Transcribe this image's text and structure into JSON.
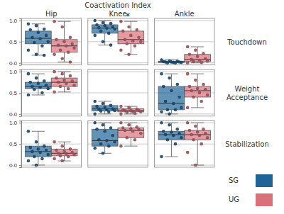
{
  "chart_data": {
    "type": "box",
    "title": "Coactivation Index",
    "columns": [
      "Hip",
      "Knee",
      "Ankle"
    ],
    "rows": [
      "Touchdown",
      "Weight Acceptance",
      "Stabilization"
    ],
    "ylim": [
      -0.05,
      1.05
    ],
    "yticks": [
      {
        "value": 0,
        "label": "0.0"
      },
      {
        "value": 0.5,
        "label": "0.5"
      },
      {
        "value": 1,
        "label": "1.0"
      }
    ],
    "grid": true,
    "legend": "lower right",
    "annotations": [
      {
        "text": "*",
        "row": 0,
        "column": 1
      }
    ],
    "series": [
      {
        "name": "SG",
        "color": "#1f6496",
        "boxes": [
          [
            {
              "whisker_low": 0.18,
              "q1": 0.45,
              "median": 0.58,
              "q3": 0.75,
              "whisker_high": 0.92,
              "points": [
                0.92,
                0.88,
                0.8,
                0.78,
                0.72,
                0.65,
                0.6,
                0.57,
                0.5,
                0.48,
                0.4,
                0.3,
                0.2,
                0.18
              ]
            },
            {
              "whisker_low": 0.42,
              "q1": 0.7,
              "median": 0.82,
              "q3": 0.9,
              "whisker_high": 1.0,
              "points": [
                1.0,
                0.95,
                0.93,
                0.9,
                0.88,
                0.85,
                0.83,
                0.82,
                0.8,
                0.75,
                0.7,
                0.65,
                0.5,
                0.42
              ]
            },
            {
              "whisker_low": 0.0,
              "q1": 0.01,
              "median": 0.02,
              "q3": 0.04,
              "whisker_high": 0.07,
              "points": [
                0.07,
                0.05,
                0.04,
                0.03,
                0.02,
                0.02,
                0.02,
                0.01,
                0.01,
                0.0,
                0.0
              ]
            }
          ],
          [
            {
              "whisker_low": 0.45,
              "q1": 0.6,
              "median": 0.65,
              "q3": 0.75,
              "whisker_high": 0.95,
              "points": [
                0.95,
                0.85,
                0.78,
                0.75,
                0.72,
                0.68,
                0.65,
                0.63,
                0.6,
                0.58,
                0.5,
                0.45
              ]
            },
            {
              "whisker_low": 0.0,
              "q1": 0.07,
              "median": 0.12,
              "q3": 0.2,
              "whisker_high": 0.3,
              "points": [
                0.3,
                0.25,
                0.2,
                0.18,
                0.15,
                0.12,
                0.12,
                0.1,
                0.08,
                0.07,
                0.05,
                0.0
              ]
            },
            {
              "whisker_low": 0.0,
              "q1": 0.1,
              "median": 0.25,
              "q3": 0.65,
              "whisker_high": 0.95,
              "points": [
                0.95,
                0.85,
                0.7,
                0.65,
                0.55,
                0.4,
                0.3,
                0.25,
                0.15,
                0.1,
                0.1,
                0.05,
                0.0
              ]
            }
          ],
          [
            {
              "whisker_low": 0.0,
              "q1": 0.2,
              "median": 0.32,
              "q3": 0.45,
              "whisker_high": 0.8,
              "points": [
                0.8,
                0.55,
                0.45,
                0.42,
                0.38,
                0.35,
                0.32,
                0.3,
                0.25,
                0.2,
                0.15,
                0.1,
                0.0
              ]
            },
            {
              "whisker_low": 0.28,
              "q1": 0.45,
              "median": 0.58,
              "q3": 0.85,
              "whisker_high": 1.0,
              "points": [
                1.0,
                0.95,
                0.88,
                0.85,
                0.8,
                0.7,
                0.6,
                0.58,
                0.55,
                0.5,
                0.45,
                0.4,
                0.28
              ]
            },
            {
              "whisker_low": 0.2,
              "q1": 0.6,
              "median": 0.72,
              "q3": 0.8,
              "whisker_high": 1.0,
              "points": [
                1.0,
                0.95,
                0.85,
                0.8,
                0.78,
                0.75,
                0.72,
                0.7,
                0.65,
                0.6,
                0.5,
                0.2
              ]
            }
          ]
        ]
      },
      {
        "name": "UG",
        "color": "#d9707a",
        "boxes": [
          [
            {
              "whisker_low": 0.02,
              "q1": 0.25,
              "median": 0.4,
              "q3": 0.55,
              "whisker_high": 0.98,
              "points": [
                0.98,
                0.85,
                0.6,
                0.55,
                0.5,
                0.45,
                0.42,
                0.4,
                0.35,
                0.3,
                0.25,
                0.2,
                0.1,
                0.02
              ]
            },
            {
              "whisker_low": 0.2,
              "q1": 0.45,
              "median": 0.55,
              "q3": 0.75,
              "whisker_high": 0.98,
              "points": [
                0.98,
                0.85,
                0.78,
                0.75,
                0.65,
                0.6,
                0.55,
                0.52,
                0.5,
                0.45,
                0.4,
                0.3,
                0.2
              ]
            },
            {
              "whisker_low": 0.0,
              "q1": 0.03,
              "median": 0.08,
              "q3": 0.2,
              "whisker_high": 0.38,
              "points": [
                0.38,
                0.3,
                0.22,
                0.2,
                0.15,
                0.1,
                0.08,
                0.06,
                0.04,
                0.03,
                0.01,
                0.0
              ]
            }
          ],
          [
            {
              "whisker_low": 0.52,
              "q1": 0.65,
              "median": 0.75,
              "q3": 0.85,
              "whisker_high": 1.0,
              "points": [
                1.0,
                0.95,
                0.9,
                0.85,
                0.8,
                0.78,
                0.75,
                0.72,
                0.68,
                0.65,
                0.6,
                0.52
              ]
            },
            {
              "whisker_low": 0.0,
              "q1": 0.05,
              "median": 0.08,
              "q3": 0.12,
              "whisker_high": 0.18,
              "points": [
                0.18,
                0.15,
                0.12,
                0.1,
                0.09,
                0.08,
                0.08,
                0.06,
                0.05,
                0.04,
                0.02,
                0.0
              ]
            },
            {
              "whisker_low": 0.15,
              "q1": 0.4,
              "median": 0.55,
              "q3": 0.65,
              "whisker_high": 0.95,
              "points": [
                0.95,
                0.8,
                0.7,
                0.65,
                0.6,
                0.58,
                0.55,
                0.5,
                0.45,
                0.4,
                0.3,
                0.15
              ]
            }
          ],
          [
            {
              "whisker_low": 0.1,
              "q1": 0.22,
              "median": 0.28,
              "q3": 0.38,
              "whisker_high": 0.55,
              "points": [
                0.55,
                0.45,
                0.38,
                0.35,
                0.32,
                0.3,
                0.28,
                0.27,
                0.25,
                0.22,
                0.2,
                0.15,
                0.1
              ]
            },
            {
              "whisker_low": 0.45,
              "q1": 0.65,
              "median": 0.82,
              "q3": 0.88,
              "whisker_high": 1.0,
              "points": [
                1.0,
                0.95,
                0.9,
                0.88,
                0.86,
                0.84,
                0.82,
                0.8,
                0.75,
                0.65,
                0.6,
                0.45
              ]
            },
            {
              "whisker_low": 0.0,
              "q1": 0.6,
              "median": 0.72,
              "q3": 0.82,
              "whisker_high": 1.0,
              "points": [
                1.0,
                0.92,
                0.85,
                0.82,
                0.78,
                0.75,
                0.72,
                0.7,
                0.65,
                0.6,
                0.5,
                0.3,
                0.0
              ]
            }
          ]
        ]
      }
    ]
  }
}
